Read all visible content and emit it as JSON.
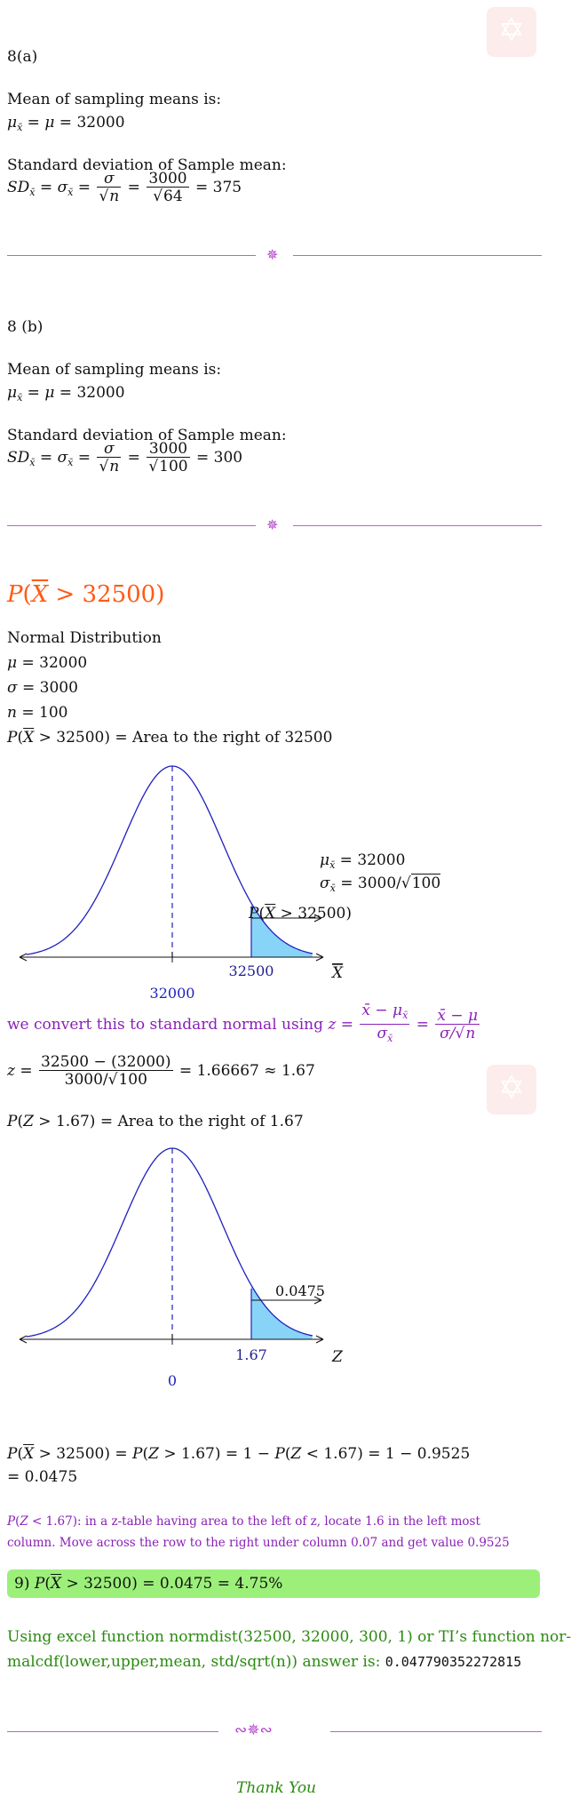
{
  "part_a": {
    "label": "8(a)",
    "mean_heading": "Mean of sampling means is:",
    "mean_eq_value": "32000",
    "sd_heading": "Standard deviation of Sample mean:",
    "sd_num": "3000",
    "sd_den": "64",
    "sd_result": "375"
  },
  "part_b": {
    "label": "8 (b)",
    "mean_heading": "Mean of sampling means is:",
    "mean_eq_value": "32000",
    "sd_heading": "Standard deviation of Sample mean:",
    "sd_num": "3000",
    "sd_den": "100",
    "sd_result": "300"
  },
  "problem": {
    "heading_value": "32500",
    "dist_label": "Normal Distribution",
    "mu": "32000",
    "sigma": "3000",
    "n": "100",
    "area_text": "Area to the right of 32500"
  },
  "graph1": {
    "mean_label": "32000",
    "cut_label": "32500",
    "axis_var": "X",
    "region_label_value": "32500",
    "note_mu": "32000",
    "note_sigma_num": "3000",
    "note_sigma_den": "100"
  },
  "convert": {
    "text": "we convert this to standard normal using"
  },
  "z_calc": {
    "num": "32500 − (32000)",
    "den_num": "3000",
    "den_root": "100",
    "result": "1.66667",
    "approx": "1.67"
  },
  "z_area": {
    "text": "Area to the right of 1.67"
  },
  "graph2": {
    "mean_label": "0",
    "cut_label": "1.67",
    "axis_var": "Z",
    "region_label": "0.0475"
  },
  "final_calc": {
    "line1_tail": "1 − 0.9525",
    "line2": "= 0.0475"
  },
  "ztable_note": {
    "line1": "in a z-table having area to the left of z, locate 1.6 in the left most",
    "line2": "column. Move across the row to the right under column 0.07 and get value 0.9525"
  },
  "answer": {
    "num": "9)",
    "value": "0.0475 = 4.75%"
  },
  "excel_note": {
    "line1": "Using excel function normdist(32500, 32000, 300, 1) or TI’s function nor-",
    "line2": "malcdf(lower,upper,mean, std/sqrt(n)) answer is:",
    "value": "0.047790352272815"
  },
  "footer": {
    "thanks": "Thank You"
  },
  "colors": {
    "purple": "#8a20b8",
    "orange": "#ff5a14",
    "green": "#2a8a10",
    "curve": "#2020c0",
    "shade": "#88d4f8",
    "answer_bg": "#9cf07a"
  }
}
